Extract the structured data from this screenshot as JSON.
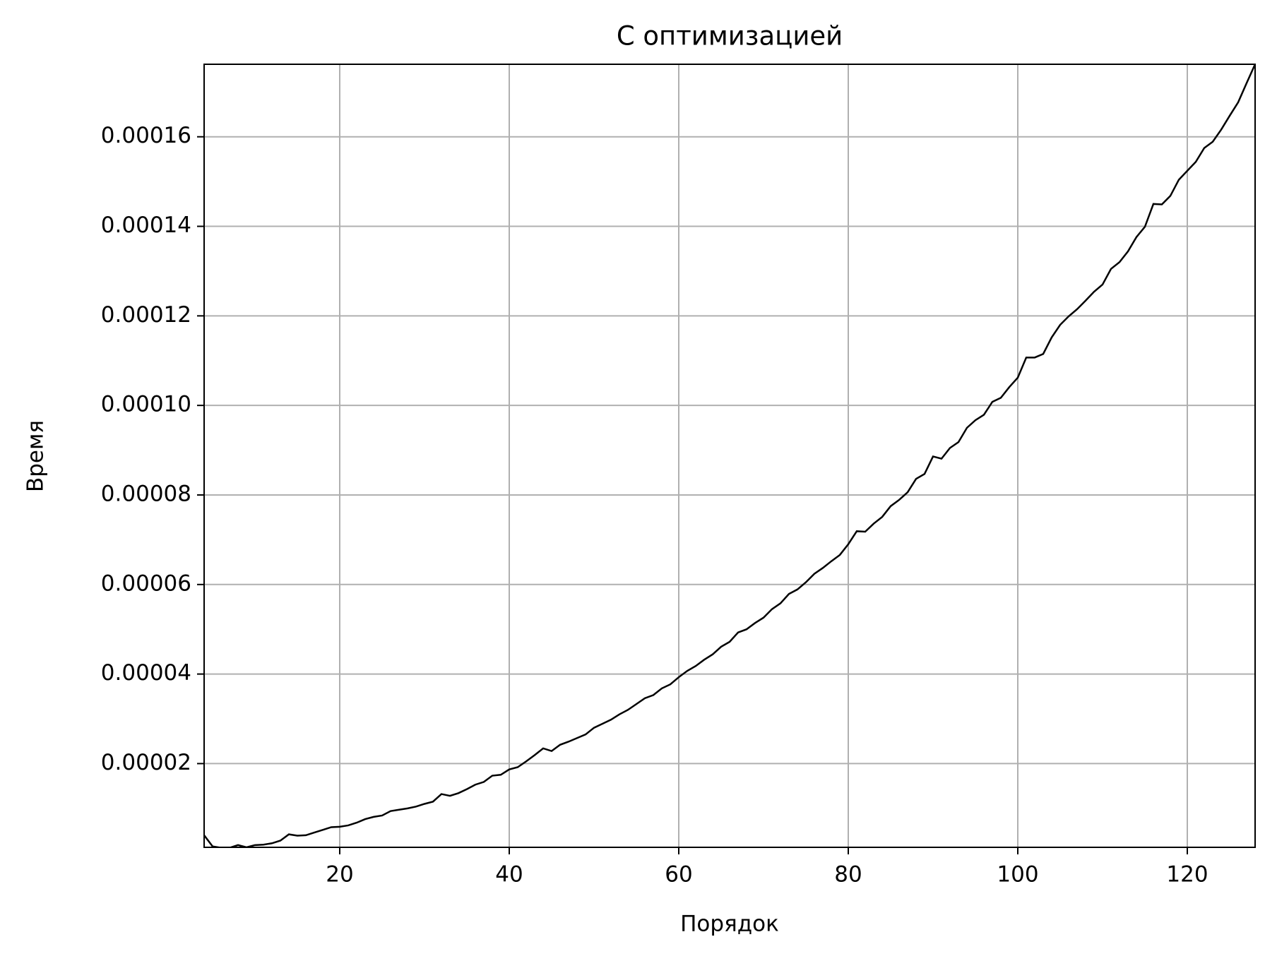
{
  "chart_data": {
    "type": "line",
    "title": "С оптимизацией",
    "x_label": "Порядок",
    "y_label": "Время",
    "x": [
      4,
      5,
      6,
      7,
      8,
      9,
      10,
      11,
      12,
      13,
      14,
      15,
      16,
      17,
      18,
      19,
      20,
      21,
      22,
      23,
      24,
      25,
      26,
      27,
      28,
      29,
      30,
      31,
      32,
      33,
      34,
      35,
      36,
      37,
      38,
      39,
      40,
      41,
      42,
      43,
      44,
      45,
      46,
      47,
      48,
      49,
      50,
      51,
      52,
      53,
      54,
      55,
      56,
      57,
      58,
      59,
      60,
      61,
      62,
      63,
      64,
      65,
      66,
      67,
      68,
      69,
      70,
      71,
      72,
      73,
      74,
      75,
      76,
      77,
      78,
      79,
      80,
      81,
      82,
      83,
      84,
      85,
      86,
      87,
      88,
      89,
      90,
      91,
      92,
      93,
      94,
      95,
      96,
      97,
      98,
      99,
      100,
      101,
      102,
      103,
      104,
      105,
      106,
      107,
      108,
      109,
      110,
      111,
      112,
      113,
      114,
      115,
      116,
      117,
      118,
      119,
      120,
      121,
      122,
      123,
      124,
      125,
      126,
      127,
      128
    ],
    "series": [
      {
        "color": "#000000",
        "values": [
          4e-06,
          1.5e-06,
          1.2e-06,
          1.2e-06,
          1.8e-06,
          1.3e-06,
          1.8e-06,
          1.9e-06,
          2.2e-06,
          2.8e-06,
          4.2e-06,
          3.9e-06,
          4e-06,
          4.6e-06,
          5.2e-06,
          5.8e-06,
          5.9e-06,
          6.2e-06,
          6.8e-06,
          7.6e-06,
          8.1e-06,
          8.4e-06,
          9.4e-06,
          9.7e-06,
          1e-05,
          1.04e-05,
          1.1e-05,
          1.15e-05,
          1.32e-05,
          1.28e-05,
          1.34e-05,
          1.43e-05,
          1.53e-05,
          1.59e-05,
          1.73e-05,
          1.75e-05,
          1.87e-05,
          1.92e-05,
          2.05e-05,
          2.19e-05,
          2.34e-05,
          2.28e-05,
          2.42e-05,
          2.49e-05,
          2.57e-05,
          2.65e-05,
          2.8e-05,
          2.89e-05,
          2.98e-05,
          3.1e-05,
          3.2e-05,
          3.33e-05,
          3.46e-05,
          3.53e-05,
          3.68e-05,
          3.77e-05,
          3.93e-05,
          4.07e-05,
          4.18e-05,
          4.32e-05,
          4.44e-05,
          4.61e-05,
          4.72e-05,
          4.93e-05,
          5e-05,
          5.14e-05,
          5.26e-05,
          5.45e-05,
          5.58e-05,
          5.79e-05,
          5.89e-05,
          6.05e-05,
          6.24e-05,
          6.37e-05,
          6.52e-05,
          6.66e-05,
          6.9e-05,
          7.19e-05,
          7.18e-05,
          7.36e-05,
          7.51e-05,
          7.75e-05,
          7.89e-05,
          8.06e-05,
          8.36e-05,
          8.47e-05,
          8.86e-05,
          8.81e-05,
          9.05e-05,
          9.18e-05,
          9.5e-05,
          9.67e-05,
          9.79e-05,
          0.0001008,
          0.0001017,
          0.0001041,
          0.0001062,
          0.0001107,
          0.0001107,
          0.0001115,
          0.0001152,
          0.000118,
          0.0001199,
          0.0001215,
          0.0001234,
          0.0001254,
          0.000127,
          0.0001305,
          0.000132,
          0.0001344,
          0.0001376,
          0.0001399,
          0.000145,
          0.0001449,
          0.0001468,
          0.0001504,
          0.0001524,
          0.0001544,
          0.0001575,
          0.0001589,
          0.0001616,
          0.0001647,
          0.0001677,
          0.000172,
          0.0001762
        ]
      }
    ],
    "xlim": [
      4,
      128
    ],
    "ylim": [
      1.3e-06,
      0.0001762
    ],
    "xticks": [
      20,
      40,
      60,
      80,
      100,
      120
    ],
    "yticks": [
      {
        "value": 2e-05,
        "label": "0.00002"
      },
      {
        "value": 4e-05,
        "label": "0.00004"
      },
      {
        "value": 6e-05,
        "label": "0.00006"
      },
      {
        "value": 8e-05,
        "label": "0.00008"
      },
      {
        "value": 0.0001,
        "label": "0.00010"
      },
      {
        "value": 0.00012,
        "label": "0.00012"
      },
      {
        "value": 0.00014,
        "label": "0.00014"
      },
      {
        "value": 0.00016,
        "label": "0.00016"
      }
    ],
    "grid": true
  }
}
